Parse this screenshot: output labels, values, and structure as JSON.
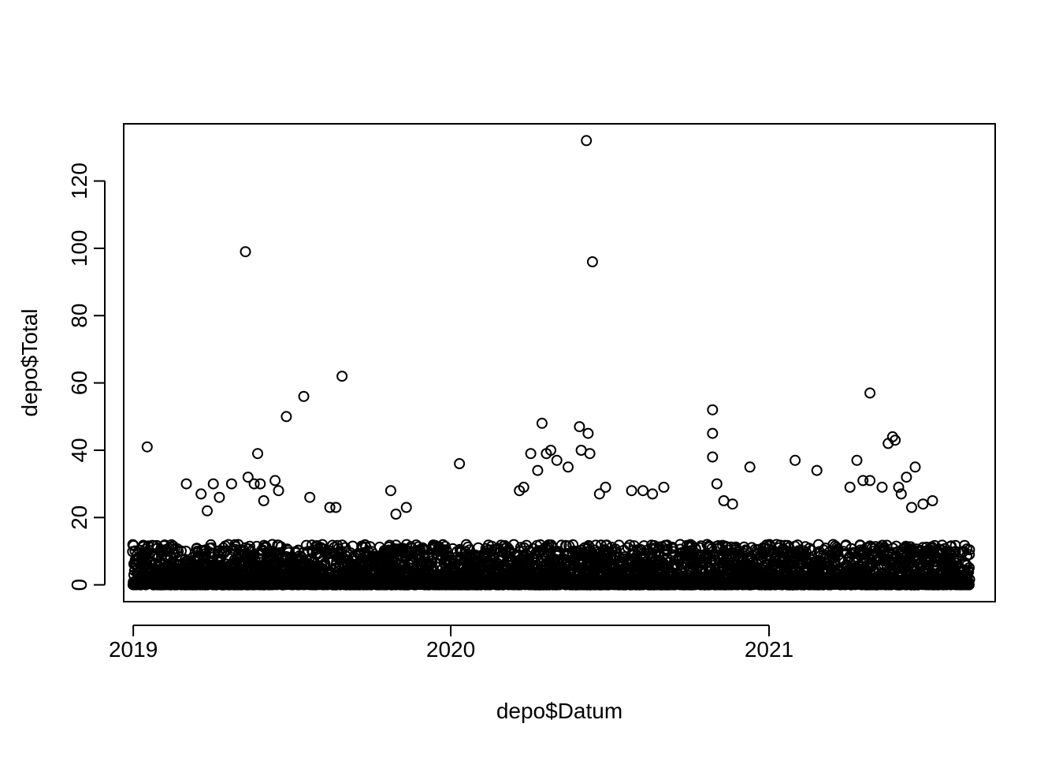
{
  "chart_data": {
    "type": "scatter",
    "title": "",
    "xlabel": "depo$Datum",
    "ylabel": "depo$Total",
    "x_ticks": [
      "2019",
      "2020",
      "2021"
    ],
    "y_ticks": [
      0,
      20,
      40,
      60,
      80,
      100,
      120
    ],
    "xlim": [
      "2018-12-21",
      "2021-09-18"
    ],
    "ylim": [
      -5,
      137
    ],
    "grid": false,
    "legend": "none",
    "marker": "open-circle",
    "colors": {
      "marker": "#000000",
      "axis": "#000000",
      "background": "#ffffff"
    },
    "series": [
      {
        "values": [
          [
            "2019-01-17",
            41
          ],
          [
            "2019-05-10",
            99
          ],
          [
            "2019-08-29",
            62
          ],
          [
            "2019-07-16",
            56
          ],
          [
            "2019-06-26",
            50
          ],
          [
            "2019-05-24",
            39
          ],
          [
            "2019-05-13",
            32
          ],
          [
            "2019-05-20",
            30
          ],
          [
            "2019-05-27",
            30
          ],
          [
            "2019-06-13",
            31
          ],
          [
            "2019-07-23",
            26
          ],
          [
            "2019-08-15",
            23
          ],
          [
            "2019-08-22",
            23
          ],
          [
            "2019-04-24",
            30
          ],
          [
            "2019-04-03",
            30
          ],
          [
            "2019-04-10",
            26
          ],
          [
            "2019-03-03",
            30
          ],
          [
            "2019-03-20",
            27
          ],
          [
            "2019-06-17",
            28
          ],
          [
            "2019-10-24",
            28
          ],
          [
            "2019-11-11",
            23
          ],
          [
            "2019-10-30",
            21
          ],
          [
            "2019-03-27",
            22
          ],
          [
            "2019-05-31",
            25
          ],
          [
            "2020-01-11",
            36
          ],
          [
            "2020-06-05",
            132
          ],
          [
            "2020-06-12",
            96
          ],
          [
            "2020-05-28",
            47
          ],
          [
            "2020-06-07",
            45
          ],
          [
            "2020-04-15",
            48
          ],
          [
            "2020-04-02",
            39
          ],
          [
            "2020-06-09",
            39
          ],
          [
            "2020-04-25",
            40
          ],
          [
            "2020-05-30",
            40
          ],
          [
            "2020-04-20",
            39
          ],
          [
            "2020-05-02",
            37
          ],
          [
            "2020-04-10",
            34
          ],
          [
            "2020-05-15",
            35
          ],
          [
            "2020-06-20",
            27
          ],
          [
            "2020-06-27",
            29
          ],
          [
            "2020-03-25",
            29
          ],
          [
            "2020-03-20",
            28
          ],
          [
            "2020-07-27",
            28
          ],
          [
            "2020-08-09",
            28
          ],
          [
            "2020-09-02",
            29
          ],
          [
            "2020-08-20",
            27
          ],
          [
            "2020-10-28",
            52
          ],
          [
            "2020-10-28",
            45
          ],
          [
            "2020-10-28",
            38
          ],
          [
            "2020-11-02",
            30
          ],
          [
            "2020-11-10",
            25
          ],
          [
            "2020-11-20",
            24
          ],
          [
            "2020-12-10",
            35
          ],
          [
            "2021-01-31",
            37
          ],
          [
            "2021-02-25",
            34
          ],
          [
            "2021-04-27",
            57
          ],
          [
            "2021-05-23",
            44
          ],
          [
            "2021-05-26",
            43
          ],
          [
            "2021-05-18",
            42
          ],
          [
            "2021-04-12",
            37
          ],
          [
            "2021-04-19",
            31
          ],
          [
            "2021-04-27",
            31
          ],
          [
            "2021-06-08",
            32
          ],
          [
            "2021-06-18",
            35
          ],
          [
            "2021-05-11",
            29
          ],
          [
            "2021-05-30",
            29
          ],
          [
            "2021-06-02",
            27
          ],
          [
            "2021-07-08",
            25
          ],
          [
            "2021-06-27",
            24
          ],
          [
            "2021-04-04",
            29
          ],
          [
            "2021-06-14",
            23
          ]
        ]
      }
    ]
  }
}
